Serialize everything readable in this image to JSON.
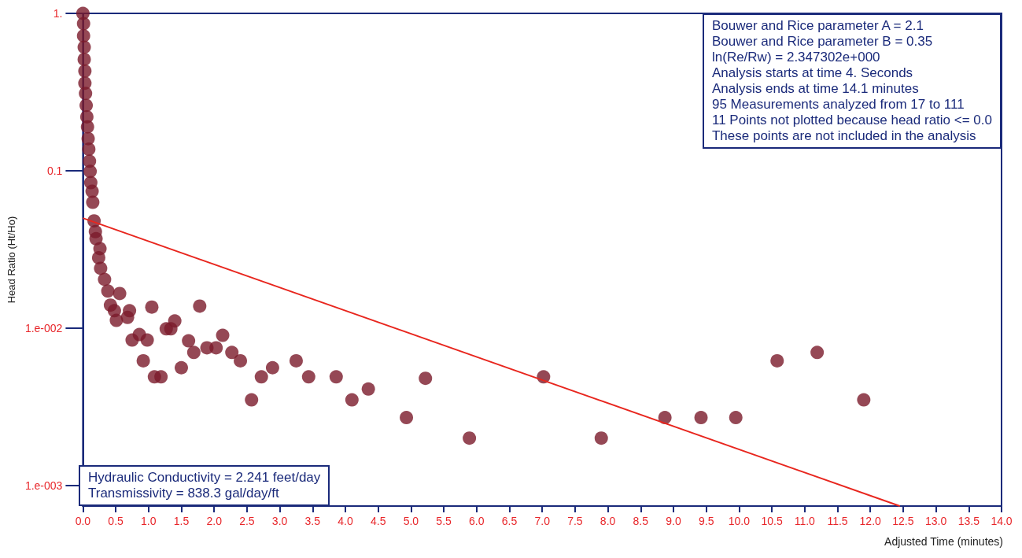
{
  "chart_data": {
    "type": "scatter",
    "xlabel": "Adjusted Time (minutes)",
    "ylabel": "Head Ratio (Ht/Ho)",
    "log": "y",
    "grid": false,
    "marker": "circle",
    "xlim": [
      0,
      14
    ],
    "xticks": [
      {
        "value": 0,
        "label": "0.0"
      },
      0.5,
      {
        "value": 1,
        "label": "1.0"
      },
      1.5,
      {
        "value": 2,
        "label": "2.0"
      },
      2.5,
      {
        "value": 3,
        "label": "3.0"
      },
      3.5,
      {
        "value": 4,
        "label": "4.0"
      },
      4.5,
      {
        "value": 5,
        "label": "5.0"
      },
      5.5,
      {
        "value": 6,
        "label": "6.0"
      },
      6.5,
      {
        "value": 7,
        "label": "7.0"
      },
      7.5,
      {
        "value": 8,
        "label": "8.0"
      },
      8.5,
      {
        "value": 9,
        "label": "9.0"
      },
      9.5,
      {
        "value": 10,
        "label": "10.0"
      },
      10.5,
      {
        "value": 11,
        "label": "11.0"
      },
      11.5,
      {
        "value": 12,
        "label": "12.0"
      },
      12.5,
      {
        "value": 13,
        "label": "13.0"
      },
      13.5,
      {
        "value": 14,
        "label": "14.0"
      }
    ],
    "ylim": [
      0.00074,
      1
    ],
    "yticks": [
      {
        "value": 1,
        "label": "1."
      },
      0.1,
      {
        "value": 0.01,
        "label": "1.e-002"
      },
      {
        "value": 0.001,
        "label": "1.e-003"
      }
    ],
    "annotations": [
      "Bouwer and Rice parameter A = 2.1\nBouwer and Rice parameter B = 0.35\nln(Re/Rw) = 2.347302e+000\nAnalysis starts at time 4. Seconds\nAnalysis ends at time 14.1 minutes\n95 Measurements analyzed from 17 to 111\n11 Points not plotted because head ratio <= 0.0\nThese points are not included in the analysis",
      "Hydraulic Conductivity = 2.241 feet/day\nTransmissivity = 838.3 gal/day/ft"
    ],
    "series": [
      {
        "color": "#7b1a2a",
        "x": [
          0,
          0.01,
          0.01,
          0.02,
          0.02,
          0.03,
          0.03,
          0.04,
          0.05,
          0.06,
          0.07,
          0.08,
          0.09,
          0.1,
          0.11,
          0.12,
          0.14,
          0.15,
          0.17,
          0.19,
          0.2,
          0.26,
          0.24,
          0.27,
          0.33,
          0.38,
          0.56,
          0.42,
          0.48,
          0.71,
          0.68,
          0.51,
          1.05,
          1.78,
          1.4,
          1.27,
          1.34,
          0.75,
          0.86,
          0.98,
          0.92,
          1.09,
          1.19,
          1.5,
          1.61,
          1.69,
          1.89,
          2.03,
          2.13,
          2.27,
          2.4,
          2.57,
          2.72,
          2.89,
          3.25,
          3.44,
          3.86,
          4.1,
          4.35,
          4.93,
          5.22,
          5.89,
          7.02,
          7.9,
          8.87,
          9.42,
          9.95,
          10.58,
          11.19,
          11.9
        ],
        "values": [
          1,
          0.86,
          0.72,
          0.61,
          0.51,
          0.43,
          0.36,
          0.31,
          0.26,
          0.22,
          0.19,
          0.16,
          0.137,
          0.115,
          0.099,
          0.084,
          0.074,
          0.063,
          0.048,
          0.041,
          0.037,
          0.032,
          0.028,
          0.024,
          0.0204,
          0.0172,
          0.0166,
          0.014,
          0.0129,
          0.0129,
          0.0117,
          0.0112,
          0.0136,
          0.0138,
          0.0111,
          0.0099,
          0.0099,
          0.0084,
          0.0091,
          0.0084,
          0.0062,
          0.0049,
          0.0049,
          0.0056,
          0.0083,
          0.007,
          0.0075,
          0.0075,
          0.009,
          0.007,
          0.0062,
          0.0035,
          0.0049,
          0.0056,
          0.0062,
          0.0049,
          0.0049,
          0.0035,
          0.0041,
          0.0027,
          0.0048,
          0.002,
          0.0049,
          0.002,
          0.0027,
          0.0027,
          0.0027,
          0.0062,
          0.007,
          0.0035
        ]
      },
      {
        "type": "line",
        "color": "#e8261e",
        "marker": "none",
        "x": [
          0,
          12.45
        ],
        "values": [
          0.05,
          0.00074
        ]
      }
    ]
  }
}
